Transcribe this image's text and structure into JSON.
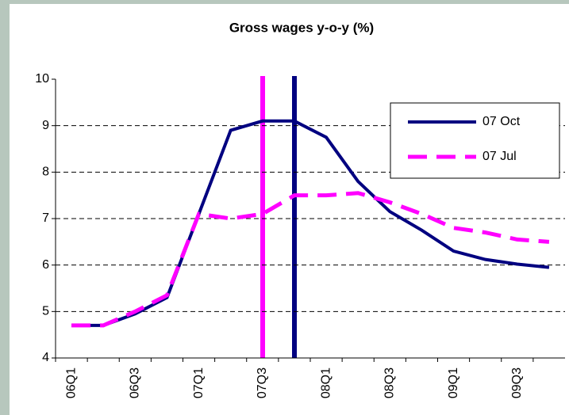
{
  "chart_data": {
    "type": "line",
    "title": "Gross wages y-o-y (%)",
    "categories": [
      "06Q1",
      null,
      "06Q3",
      null,
      "07Q1",
      null,
      "07Q3",
      null,
      "08Q1",
      null,
      "08Q3",
      null,
      "09Q1",
      null,
      "09Q3",
      null
    ],
    "series": [
      {
        "name": "07 Oct",
        "color": "#000080",
        "dashed": false,
        "values": [
          4.7,
          4.7,
          4.95,
          5.3,
          7.1,
          8.9,
          9.1,
          9.1,
          8.75,
          7.8,
          7.15,
          6.75,
          6.3,
          6.12,
          6.02,
          5.95
        ]
      },
      {
        "name": "07 Jul",
        "color": "#ff00ff",
        "dashed": true,
        "values": [
          4.7,
          4.7,
          5.0,
          5.35,
          7.1,
          7.0,
          7.1,
          7.5,
          7.5,
          7.55,
          7.35,
          7.1,
          6.8,
          6.7,
          6.55,
          6.5
        ]
      }
    ],
    "ylim": [
      4,
      10
    ],
    "yticks": [
      4,
      5,
      6,
      7,
      8,
      9,
      10
    ],
    "grid": true,
    "legend": "upper right"
  }
}
